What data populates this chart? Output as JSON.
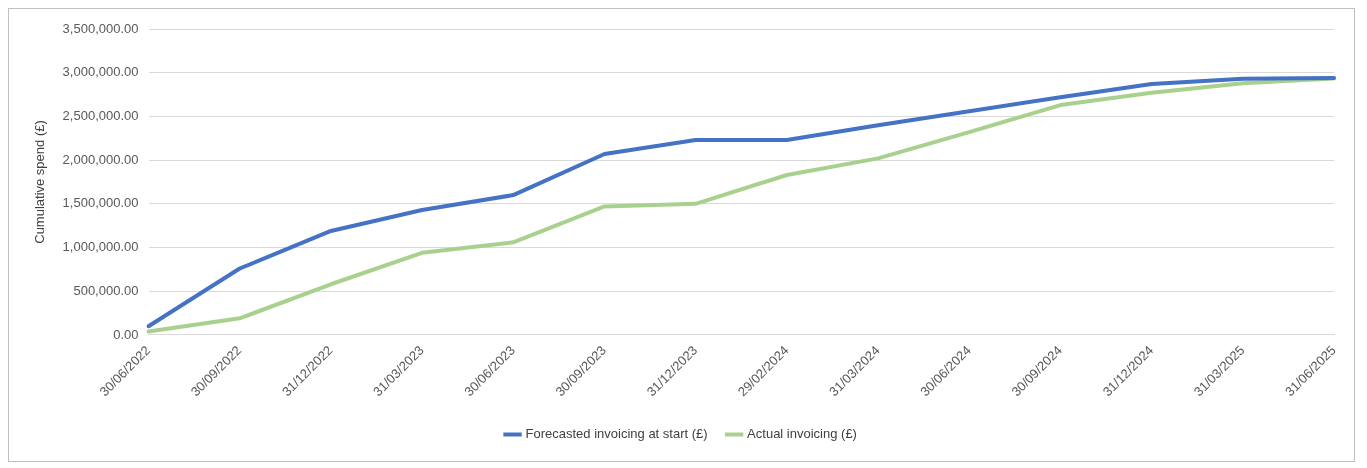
{
  "chart_data": {
    "type": "line",
    "ylabel": "Cumulative spend (£)",
    "categories": [
      "30/06/2022",
      "30/09/2022",
      "31/12/2022",
      "31/03/2023",
      "30/06/2023",
      "30/09/2023",
      "31/12/2023",
      "29/02/2024",
      "31/03/2024",
      "30/06/2024",
      "30/09/2024",
      "31/12/2024",
      "31/03/2025",
      "31/06/2025"
    ],
    "series": [
      {
        "name": "Forecasted invoicing at start (£)",
        "color": "#4472c4",
        "values": [
          100000,
          760000,
          1190000,
          1430000,
          1600000,
          2070000,
          2230000,
          2230000,
          2400000,
          2560000,
          2720000,
          2870000,
          2930000,
          2940000
        ]
      },
      {
        "name": "Actual invoicing (£)",
        "color": "#a9d18e",
        "values": [
          40000,
          190000,
          580000,
          940000,
          1060000,
          1470000,
          1500000,
          1830000,
          2020000,
          2320000,
          2630000,
          2770000,
          2880000,
          2935000
        ]
      }
    ],
    "ylim": [
      0,
      3500000
    ],
    "yticks": [
      {
        "value": 0,
        "label": "0.00"
      },
      {
        "value": 500000,
        "label": "500,000.00"
      },
      {
        "value": 1000000,
        "label": "1,000,000.00"
      },
      {
        "value": 1500000,
        "label": "1,500,000.00"
      },
      {
        "value": 2000000,
        "label": "2,000,000.00"
      },
      {
        "value": 2500000,
        "label": "2,500,000.00"
      },
      {
        "value": 3000000,
        "label": "3,000,000.00"
      },
      {
        "value": 3500000,
        "label": "3,500,000.00"
      }
    ],
    "grid": "y",
    "legend": "bottom",
    "marker": "none",
    "line_style": "solid"
  }
}
